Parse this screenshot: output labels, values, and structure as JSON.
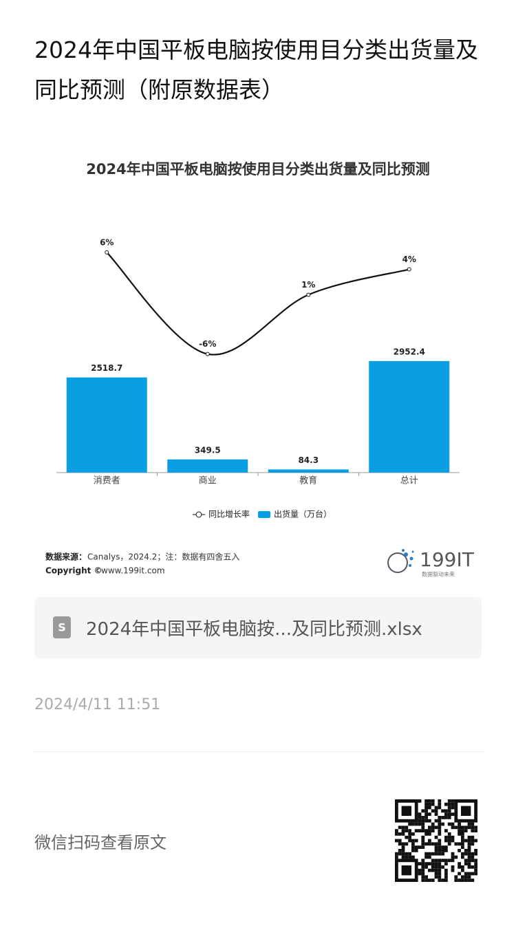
{
  "page": {
    "title": "2024年中国平板电脑按使用目分类出货量及同比预测（附原数据表）",
    "source_label": "数据来源：",
    "source_text": "Canalys，2024.2；注：数据有四舍五入",
    "copyright_label": "Copyright ©",
    "copyright_text": "www.199it.com",
    "logo_text": "199IT",
    "logo_slogan": "数据驱动未来",
    "file_name": "2024年中国平板电脑按...及同比预测.xlsx",
    "date": "2024/4/11 11:51",
    "footer_text": "微信扫码查看原文"
  },
  "chart_data": {
    "type": "bar_line",
    "title": "2024年中国平板电脑按使用目分类出货量及同比预测",
    "categories": [
      "消费者",
      "商业",
      "教育",
      "总计"
    ],
    "series": [
      {
        "name": "同比增长率",
        "type": "line",
        "axis": "y2",
        "color": "#111111",
        "values": [
          6,
          -6,
          1,
          4
        ],
        "value_labels": [
          "6%",
          "-6%",
          "1%",
          "4%"
        ]
      },
      {
        "name": "出货量（万台）",
        "type": "bar",
        "color": "#0a9fe3",
        "values": [
          2518.7,
          349.5,
          84.3,
          2952.4
        ]
      }
    ],
    "ylim": [
      0,
      6500
    ],
    "y2lim": [
      -20,
      9
    ],
    "legend": "bottom"
  }
}
